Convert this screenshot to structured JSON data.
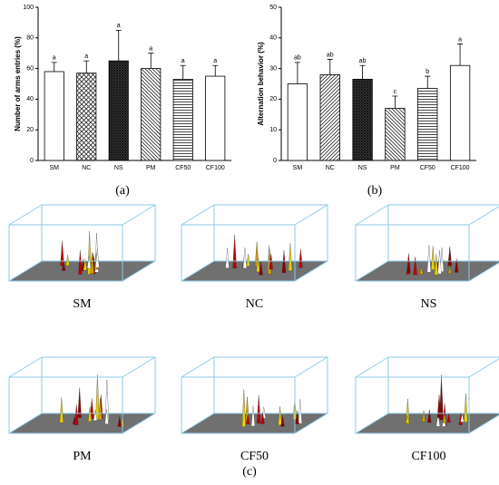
{
  "chart_data": [
    {
      "type": "bar",
      "ylabel": "Number of arms entries (%)",
      "categories": [
        "SM",
        "NC",
        "NS",
        "PM",
        "CF50",
        "CF100"
      ],
      "values": [
        58,
        57,
        65,
        60,
        53,
        55
      ],
      "errors": [
        6,
        8,
        20,
        10,
        9,
        7
      ],
      "letters": [
        "a",
        "a",
        "a",
        "a",
        "a",
        "a"
      ],
      "patterns": [
        "none",
        "crosshatch",
        "dense-crosshatch",
        "diagonal",
        "horizontal",
        "none"
      ],
      "color": "#ffffff",
      "ylim": [
        0,
        100
      ],
      "yticks": [
        0,
        20,
        40,
        60,
        80,
        100
      ]
    },
    {
      "type": "bar",
      "ylabel": "Alternation behavior (%)",
      "categories": [
        "SM",
        "NC",
        "NS",
        "PM",
        "CF50",
        "CF100"
      ],
      "values": [
        25,
        28,
        26.5,
        17,
        23.5,
        31
      ],
      "errors": [
        7,
        5,
        4.5,
        4,
        4,
        7
      ],
      "letters": [
        "ab",
        "ab",
        "ab",
        "c",
        "b",
        "a"
      ],
      "patterns": [
        "none",
        "diagonal-back",
        "dense-crosshatch",
        "diagonal",
        "horizontal",
        "none"
      ],
      "color": "#ffffff",
      "ylim": [
        0,
        50
      ],
      "yticks": [
        0,
        10,
        20,
        30,
        40,
        50
      ]
    }
  ],
  "panel_labels": [
    "(a)",
    "(b)",
    "(c)"
  ],
  "image_labels": [
    "SM",
    "NC",
    "NS",
    "PM",
    "CF50",
    "CF100"
  ]
}
